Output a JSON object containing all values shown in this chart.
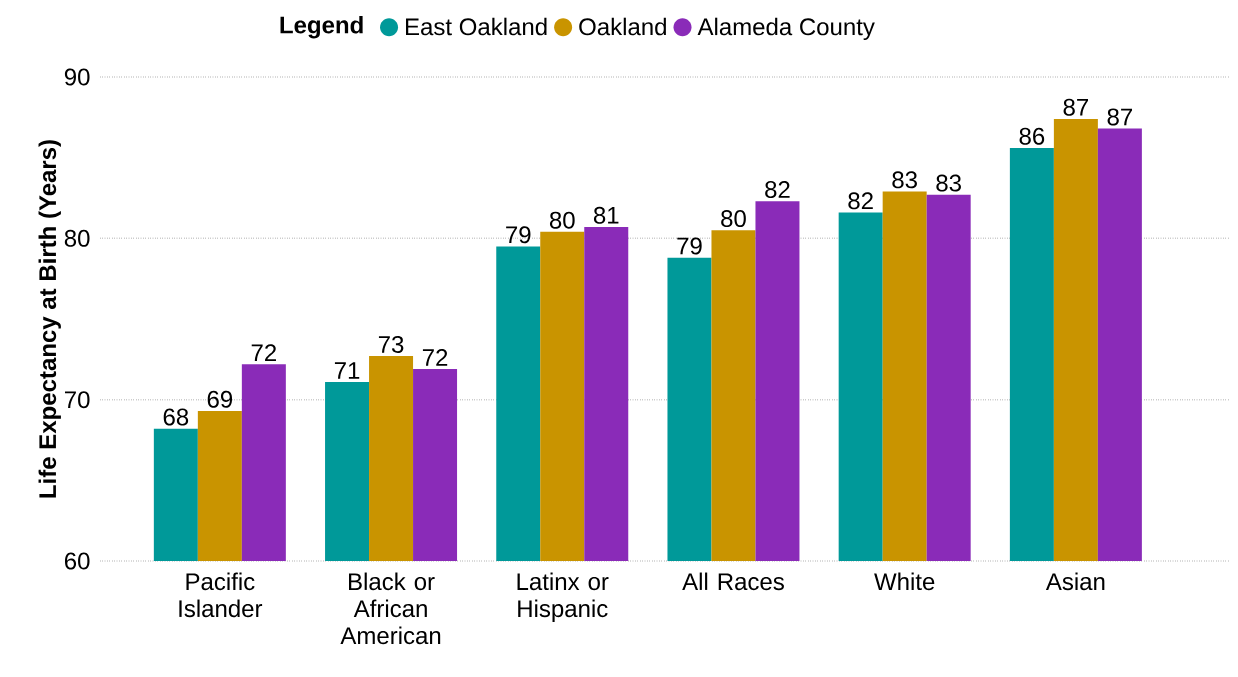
{
  "chart_data": {
    "type": "bar",
    "ylabel": "Life Expectancy at Birth (Years)",
    "legend_title": "Legend",
    "categories": [
      "Pacific Islander",
      "Black or African American",
      "Latinx or Hispanic",
      "All Races",
      "White",
      "Asian"
    ],
    "series": [
      {
        "name": "East Oakland",
        "color": "#009999",
        "values": [
          68.2,
          71.1,
          79.5,
          78.8,
          81.6,
          85.6
        ],
        "value_labels": [
          "68",
          "71",
          "79",
          "79",
          "82",
          "86"
        ]
      },
      {
        "name": "Oakland",
        "color": "#c99400",
        "values": [
          69.3,
          72.7,
          80.4,
          80.5,
          82.9,
          87.4
        ],
        "value_labels": [
          "69",
          "73",
          "80",
          "80",
          "83",
          "87"
        ]
      },
      {
        "name": "Alameda County",
        "color": "#8a2bb8",
        "values": [
          72.2,
          71.9,
          80.7,
          82.3,
          82.7,
          86.8
        ],
        "value_labels": [
          "72",
          "72",
          "81",
          "82",
          "83",
          "87"
        ]
      }
    ],
    "ylim": [
      60,
      90
    ],
    "yticks": [
      60,
      70,
      80,
      90
    ],
    "grid": "y",
    "legend": "top"
  }
}
